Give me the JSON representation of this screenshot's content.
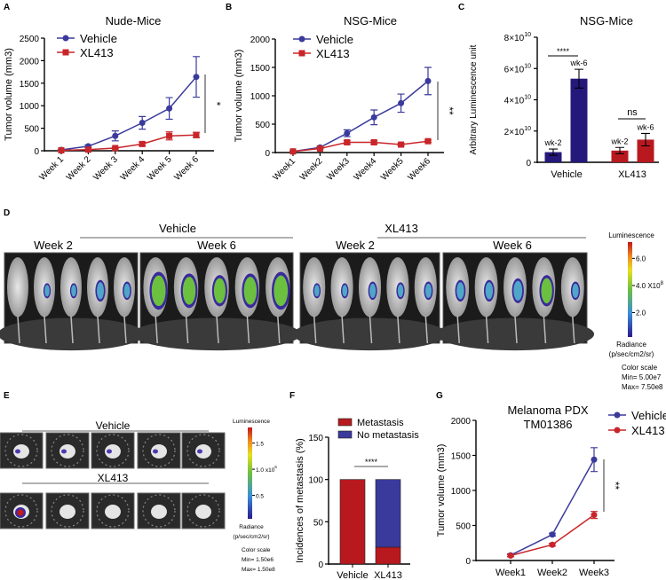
{
  "colors": {
    "vehicle": "#3a3a9c",
    "xl413": "#c8262a",
    "bar_vehicle": "#24197a",
    "bar_xl413": "#b8191e",
    "stack_no_met": "#3a3a9c"
  },
  "panel_labels": [
    "A",
    "B",
    "C",
    "D",
    "E",
    "F",
    "G"
  ],
  "chart_data": [
    {
      "id": "A",
      "type": "line",
      "title": "Nude-Mice",
      "xlabel": "",
      "ylabel": "Tumor volume (mm3)",
      "categories": [
        "Week 1",
        "Week 2",
        "Week 3",
        "Week 4",
        "Week 5",
        "Week 6"
      ],
      "ylim": [
        0,
        2500
      ],
      "yticks": [
        0,
        500,
        1000,
        1500,
        2000,
        2500
      ],
      "rotate_x": true,
      "series": [
        {
          "name": "Vehicle",
          "marker": "circle",
          "values": [
            20,
            100,
            330,
            620,
            940,
            1640
          ],
          "errors": [
            10,
            30,
            110,
            140,
            240,
            450
          ]
        },
        {
          "name": "XL413",
          "marker": "square",
          "values": [
            10,
            25,
            60,
            150,
            330,
            350
          ],
          "errors": [
            5,
            10,
            20,
            40,
            90,
            60
          ]
        }
      ],
      "significance": "*",
      "legend": "top-left"
    },
    {
      "id": "B",
      "type": "line",
      "title": "NSG-Mice",
      "xlabel": "",
      "ylabel": "Tumor volume (mm3)",
      "categories": [
        "Week1",
        "Week2",
        "Week3",
        "Week4",
        "Week5",
        "Week6"
      ],
      "ylim": [
        0,
        2000
      ],
      "yticks": [
        0,
        500,
        1000,
        1500,
        2000
      ],
      "rotate_x": true,
      "series": [
        {
          "name": "Vehicle",
          "marker": "circle",
          "values": [
            20,
            90,
            340,
            620,
            870,
            1260
          ],
          "errors": [
            10,
            15,
            60,
            130,
            160,
            240
          ]
        },
        {
          "name": "XL413",
          "marker": "square",
          "values": [
            20,
            70,
            180,
            180,
            140,
            200
          ],
          "errors": [
            5,
            10,
            30,
            30,
            20,
            20
          ]
        }
      ],
      "significance": "**",
      "legend": "top-left"
    },
    {
      "id": "C",
      "type": "bar",
      "title": "NSG-Mice",
      "ylabel": "Arbitrary Luminescence unit",
      "categories": [
        "Vehicle",
        "XL413"
      ],
      "ylim": [
        0,
        80000000000.0
      ],
      "yticks": [
        0,
        20000000000.0,
        40000000000.0,
        60000000000.0,
        80000000000.0
      ],
      "ytick_labels": [
        "0",
        "2×10",
        "4×10",
        "6×10",
        "8×10"
      ],
      "ytick_exp": "10",
      "bars": [
        {
          "group": "Vehicle",
          "label": "wk-2",
          "value": 6500000000.0,
          "error": 2000000000.0
        },
        {
          "group": "Vehicle",
          "label": "wk-6",
          "value": 53500000000.0,
          "error": 6000000000.0
        },
        {
          "group": "XL413",
          "label": "wk-2",
          "value": 7500000000.0,
          "error": 2000000000.0
        },
        {
          "group": "XL413",
          "label": "wk-6",
          "value": 14500000000.0,
          "error": 4000000000.0
        }
      ],
      "significance": [
        "****",
        "ns"
      ]
    },
    {
      "id": "F",
      "type": "bar",
      "stacked": true,
      "title": "",
      "ylabel": "Incidences of metastasis (%)",
      "categories": [
        "Vehicle",
        "XL413"
      ],
      "ylim": [
        0,
        150
      ],
      "yticks": [
        0,
        50,
        100,
        150
      ],
      "series": [
        {
          "name": "Metastasis",
          "values": [
            100,
            20
          ]
        },
        {
          "name": "No metastasis",
          "values": [
            0,
            80
          ]
        }
      ],
      "significance": "****",
      "legend": "top"
    },
    {
      "id": "G",
      "type": "line",
      "title": "Melanoma PDX",
      "subtitle": "TM01386",
      "ylabel": "Tumor volume (mm3)",
      "categories": [
        "Week1",
        "Week2",
        "Week3"
      ],
      "ylim": [
        0,
        2000
      ],
      "yticks": [
        0,
        500,
        1000,
        1500,
        2000
      ],
      "rotate_x": false,
      "series": [
        {
          "name": "Vehicle",
          "marker": "circle",
          "values": [
            75,
            370,
            1440
          ],
          "errors": [
            20,
            20,
            170
          ]
        },
        {
          "name": "XL413",
          "marker": "circle",
          "values": [
            70,
            225,
            650
          ],
          "errors": [
            15,
            20,
            50
          ]
        }
      ],
      "significance": "**",
      "legend": "right"
    }
  ],
  "panel_d": {
    "groups": [
      {
        "label": "Vehicle",
        "weeks": [
          "Week 2",
          "Week 6"
        ]
      },
      {
        "label": "XL413",
        "weeks": [
          "Week 2",
          "Week 6"
        ]
      }
    ],
    "colorbar": {
      "title": "Luminescence",
      "ticks": [
        "6.0",
        "4.0 X10",
        "2.0"
      ],
      "exp": "8",
      "unit1": "Radiance",
      "unit2": "(p/sec/cm2/sr)",
      "scale": "Color scale",
      "min": "Min= 5.00e7",
      "max": "Max= 7.50e8"
    }
  },
  "panel_e": {
    "rows": [
      "Vehicle",
      "XL413"
    ],
    "colorbar": {
      "title": "Luminescence",
      "ticks": [
        "1.5",
        "1.0 x10",
        "0.5"
      ],
      "exp": "6",
      "unit1": "Radiance",
      "unit2": "(p/sec/cm2/sr)",
      "scale": "Color scale",
      "min": "Min= 1.50e6",
      "max": "Max= 1.50e8"
    }
  }
}
